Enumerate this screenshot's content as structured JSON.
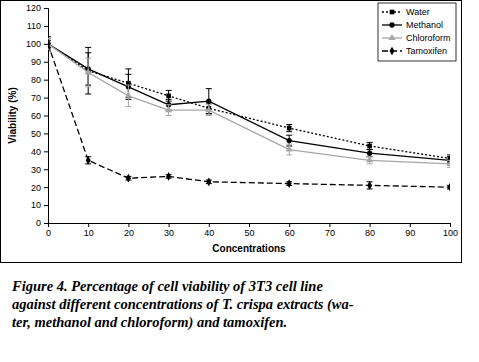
{
  "chart_data": {
    "type": "line",
    "x_label": "Concentrations",
    "y_label": "Viability (%)",
    "caption": [
      "Figure 4. Percentage of cell viability of 3T3 cell line",
      "against different concentrations of T. crispa extracts (wa-",
      "ter, methanol and chloroform) and tamoxifen."
    ],
    "x": [
      0,
      10,
      20,
      30,
      40,
      60,
      80,
      100
    ],
    "series": [
      {
        "name": "Water",
        "color": "#000000",
        "line_style": "dotted",
        "marker": "square",
        "values": [
          100,
          85,
          78,
          71,
          64,
          53,
          43,
          36
        ],
        "errors": [
          4,
          13,
          8,
          3,
          3,
          2,
          2,
          2
        ]
      },
      {
        "name": "Methanol",
        "color": "#000000",
        "line_style": "solid",
        "marker": "circle",
        "values": [
          100,
          86,
          76,
          66,
          68,
          46,
          39,
          35
        ],
        "errors": [
          3,
          9,
          7,
          3,
          7,
          3,
          2,
          2
        ]
      },
      {
        "name": "Chloroform",
        "color": "#a6a6a6",
        "line_style": "solid",
        "marker": "triangle",
        "values": [
          100,
          84,
          71,
          63,
          63,
          41,
          35,
          33
        ],
        "errors": [
          3,
          8,
          6,
          3,
          3,
          3,
          2,
          2
        ]
      },
      {
        "name": "Tamoxifen",
        "color": "#000000",
        "line_style": "dashed",
        "marker": "diamond",
        "values": [
          100,
          35,
          25,
          26,
          23,
          22,
          21,
          20
        ],
        "errors": [
          2,
          2,
          1,
          1,
          1,
          1,
          2,
          1
        ]
      }
    ],
    "xlim": [
      0,
      100
    ],
    "xticks": [
      0,
      10,
      20,
      30,
      40,
      50,
      60,
      70,
      80,
      90,
      100
    ],
    "ylim": [
      0,
      120
    ],
    "yticks": [
      0,
      10,
      20,
      30,
      40,
      50,
      60,
      70,
      80,
      90,
      100,
      110,
      120
    ],
    "grid": false,
    "legend": "upper-right"
  }
}
